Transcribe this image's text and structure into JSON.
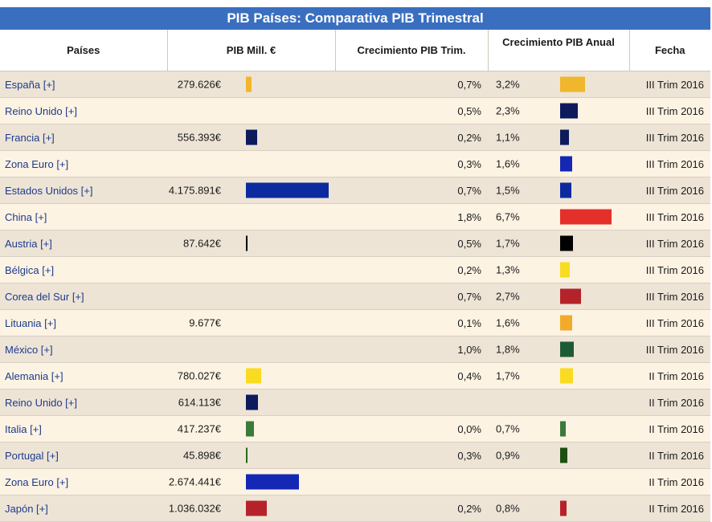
{
  "title": "PIB Países: Comparativa PIB Trimestral",
  "headers": {
    "pais": "Países",
    "pib": "PIB Mill. €",
    "trim": "Crecimiento PIB Trim.",
    "anual": "Crecimiento PIB Anual",
    "fecha": "Fecha"
  },
  "rows": [
    {
      "pais": "España [+]",
      "pib": "279.626€",
      "pib_value": 279626,
      "pib_color": "#f0b62c",
      "trim": "0,7%",
      "anual": "3,2%",
      "anual_value": 3.2,
      "anual_color": "#f0b62c",
      "fecha": "III Trim 2016"
    },
    {
      "pais": "Reino Unido [+]",
      "pib": "",
      "pib_value": 0,
      "pib_color": "",
      "trim": "0,5%",
      "anual": "2,3%",
      "anual_value": 2.3,
      "anual_color": "#0d1a5c",
      "fecha": "III Trim 2016"
    },
    {
      "pais": "Francia [+]",
      "pib": "556.393€",
      "pib_value": 556393,
      "pib_color": "#0d1a5c",
      "trim": "0,2%",
      "anual": "1,1%",
      "anual_value": 1.1,
      "anual_color": "#0d1a5c",
      "fecha": "III Trim 2016"
    },
    {
      "pais": "Zona Euro [+]",
      "pib": "",
      "pib_value": 0,
      "pib_color": "",
      "trim": "0,3%",
      "anual": "1,6%",
      "anual_value": 1.6,
      "anual_color": "#1428b4",
      "fecha": "III Trim 2016"
    },
    {
      "pais": "Estados Unidos [+]",
      "pib": "4.175.891€",
      "pib_value": 4175891,
      "pib_color": "#0b2aa0",
      "trim": "0,7%",
      "anual": "1,5%",
      "anual_value": 1.5,
      "anual_color": "#0b2aa0",
      "fecha": "III Trim 2016"
    },
    {
      "pais": "China [+]",
      "pib": "",
      "pib_value": 0,
      "pib_color": "",
      "trim": "1,8%",
      "anual": "6,7%",
      "anual_value": 6.7,
      "anual_color": "#e3302a",
      "fecha": "III Trim 2016"
    },
    {
      "pais": "Austria [+]",
      "pib": "87.642€",
      "pib_value": 87642,
      "pib_color": "#000000",
      "trim": "0,5%",
      "anual": "1,7%",
      "anual_value": 1.7,
      "anual_color": "#000000",
      "fecha": "III Trim 2016"
    },
    {
      "pais": "Bélgica [+]",
      "pib": "",
      "pib_value": 0,
      "pib_color": "",
      "trim": "0,2%",
      "anual": "1,3%",
      "anual_value": 1.3,
      "anual_color": "#f9dc22",
      "fecha": "III Trim 2016"
    },
    {
      "pais": "Corea del Sur [+]",
      "pib": "",
      "pib_value": 0,
      "pib_color": "",
      "trim": "0,7%",
      "anual": "2,7%",
      "anual_value": 2.7,
      "anual_color": "#b5232a",
      "fecha": "III Trim 2016"
    },
    {
      "pais": "Lituania [+]",
      "pib": "9.677€",
      "pib_value": 9677,
      "pib_color": "",
      "trim": "0,1%",
      "anual": "1,6%",
      "anual_value": 1.6,
      "anual_color": "#f2aa2a",
      "fecha": "III Trim 2016"
    },
    {
      "pais": "México [+]",
      "pib": "",
      "pib_value": 0,
      "pib_color": "",
      "trim": "1,0%",
      "anual": "1,8%",
      "anual_value": 1.8,
      "anual_color": "#1f5a36",
      "fecha": "III Trim 2016"
    },
    {
      "pais": "Alemania [+]",
      "pib": "780.027€",
      "pib_value": 780027,
      "pib_color": "#f9dc22",
      "trim": "0,4%",
      "anual": "1,7%",
      "anual_value": 1.7,
      "anual_color": "#f9dc22",
      "fecha": "II Trim 2016"
    },
    {
      "pais": "Reino Unido [+]",
      "pib": "614.113€",
      "pib_value": 614113,
      "pib_color": "#0d1a5c",
      "trim": "",
      "anual": "",
      "anual_value": 0,
      "anual_color": "",
      "fecha": "II Trim 2016"
    },
    {
      "pais": "Italia [+]",
      "pib": "417.237€",
      "pib_value": 417237,
      "pib_color": "#3a7a3a",
      "trim": "0,0%",
      "anual": "0,7%",
      "anual_value": 0.7,
      "anual_color": "#3a7a3a",
      "fecha": "II Trim 2016"
    },
    {
      "pais": "Portugal [+]",
      "pib": "45.898€",
      "pib_value": 45898,
      "pib_color": "#2a6a1e",
      "trim": "0,3%",
      "anual": "0,9%",
      "anual_value": 0.9,
      "anual_color": "#1e4f12",
      "fecha": "II Trim 2016"
    },
    {
      "pais": "Zona Euro [+]",
      "pib": "2.674.441€",
      "pib_value": 2674441,
      "pib_color": "#1428b4",
      "trim": "",
      "anual": "",
      "anual_value": 0,
      "anual_color": "",
      "fecha": "II Trim 2016"
    },
    {
      "pais": "Japón [+]",
      "pib": "1.036.032€",
      "pib_value": 1036032,
      "pib_color": "#b5232a",
      "trim": "0,2%",
      "anual": "0,8%",
      "anual_value": 0.8,
      "anual_color": "#b5232a",
      "fecha": "II Trim 2016"
    }
  ]
}
